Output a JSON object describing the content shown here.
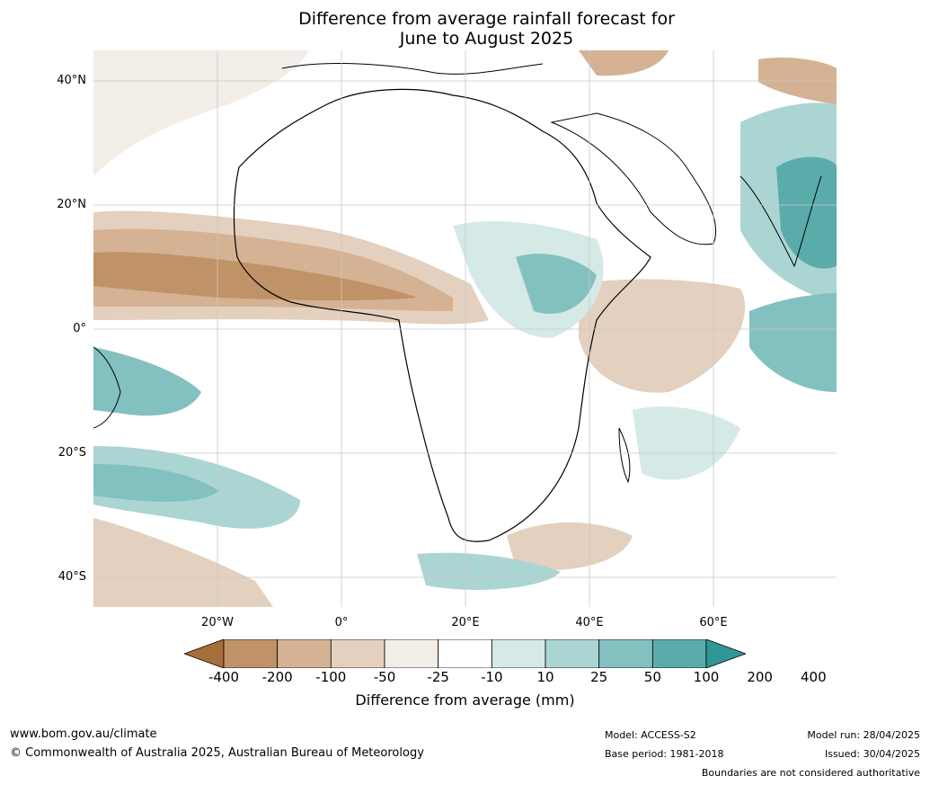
{
  "title": {
    "line1": "Difference from average rainfall forecast for",
    "line2": "June to August 2025"
  },
  "map": {
    "lat_labels": [
      "40°N",
      "20°N",
      "0°",
      "20°S",
      "40°S"
    ],
    "lon_labels": [
      "20°W",
      "0°",
      "20°E",
      "40°E",
      "60°E"
    ],
    "region": "Africa and surrounding oceans",
    "colors": {
      "dry_400": "#a66e39",
      "dry_200": "#c09268",
      "dry_100": "#d4b293",
      "dry_50": "#e4d0bf",
      "dry_25": "#f2ede6",
      "neutral": "#ffffff",
      "wet_25": "#d5e9e7",
      "wet_50": "#abd5d3",
      "wet_100": "#83c1c0",
      "wet_200": "#5aacab",
      "wet_400": "#2f9794"
    }
  },
  "legend": {
    "ticks": [
      "-400",
      "-200",
      "-100",
      "-50",
      "-25",
      "-10",
      "10",
      "25",
      "50",
      "100",
      "200",
      "400"
    ],
    "colors": [
      "#a66e39",
      "#c09268",
      "#d4b293",
      "#e4d0bf",
      "#f2ede6",
      "#ffffff",
      "#d5e9e7",
      "#abd5d3",
      "#83c1c0",
      "#5aacab",
      "#2f9794"
    ],
    "title": "Difference from average (mm)"
  },
  "footer": {
    "website": "www.bom.gov.au/climate",
    "copyright": "© Commonwealth of Australia 2025, Australian Bureau of Meteorology",
    "model": "Model: ACCESS-S2",
    "base_period": "Base period: 1981-2018",
    "model_run": "Model run: 28/04/2025",
    "issued": "Issued: 30/04/2025",
    "disclaimer": "Boundaries are not considered authoritative"
  }
}
